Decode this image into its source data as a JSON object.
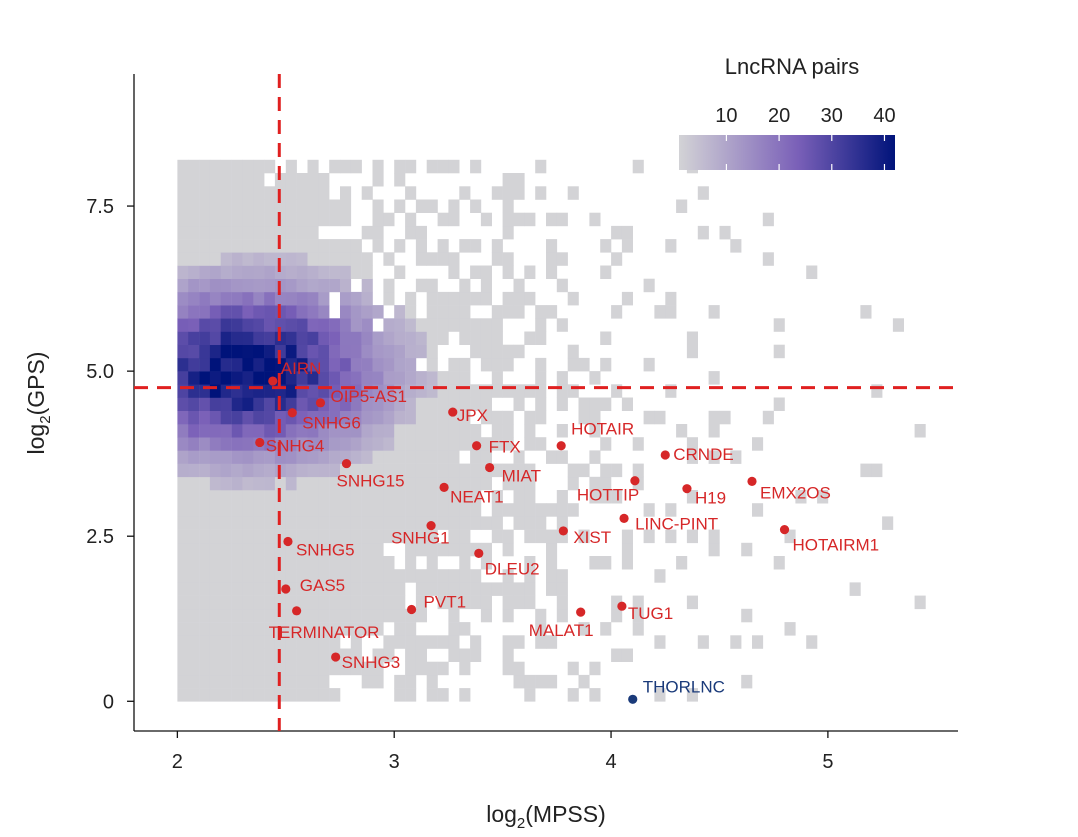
{
  "chart_data": {
    "type": "heatmap",
    "xlabel_prefix": "log",
    "xlabel_sub": "2",
    "xlabel_arg": "(MPSS)",
    "ylabel_prefix": "log",
    "ylabel_sub": "2",
    "ylabel_arg": "(GPS)",
    "xlim": [
      1.8,
      5.6
    ],
    "ylim": [
      -0.45,
      9.5
    ],
    "x_ticks": [
      2,
      3,
      4,
      5
    ],
    "x_tick_labels": [
      "2",
      "3",
      "4",
      "5"
    ],
    "y_ticks": [
      0,
      2.5,
      5.0,
      7.5
    ],
    "y_tick_labels": [
      "0",
      "2.5",
      "5.0",
      "7.5"
    ],
    "thresholds": {
      "x": 2.47,
      "y": 4.75,
      "color": "#e02020"
    },
    "legend": {
      "title": "LncRNA pairs",
      "ticks": [
        10,
        20,
        30,
        40
      ],
      "tick_labels": [
        "10",
        "20",
        "30",
        "40"
      ],
      "range": [
        1,
        42
      ],
      "color_low": "#d3d3d6",
      "color_high": "#00137a"
    },
    "density": {
      "center_x": 2.3,
      "center_y": 4.9,
      "peak_count": 42
    },
    "highlight_color": "#d62728",
    "special_color": "#1a3a7a",
    "points": [
      {
        "label": "AIRN",
        "x": 2.44,
        "y": 4.85
      },
      {
        "label": "OIP5-AS1",
        "x": 2.66,
        "y": 4.52
      },
      {
        "label": "SNHG6",
        "x": 2.53,
        "y": 4.37
      },
      {
        "label": "SNHG4",
        "x": 2.38,
        "y": 3.92
      },
      {
        "label": "SNHG15",
        "x": 2.78,
        "y": 3.6
      },
      {
        "label": "JPX",
        "x": 3.27,
        "y": 4.38
      },
      {
        "label": "FTX",
        "x": 3.38,
        "y": 3.87
      },
      {
        "label": "MIAT",
        "x": 3.44,
        "y": 3.54
      },
      {
        "label": "NEAT1",
        "x": 3.23,
        "y": 3.24
      },
      {
        "label": "HOTAIR",
        "x": 3.77,
        "y": 3.87
      },
      {
        "label": "CRNDE",
        "x": 4.25,
        "y": 3.73
      },
      {
        "label": "HOTTIP",
        "x": 4.11,
        "y": 3.34
      },
      {
        "label": "H19",
        "x": 4.35,
        "y": 3.22
      },
      {
        "label": "EMX2OS",
        "x": 4.65,
        "y": 3.33
      },
      {
        "label": "XIST",
        "x": 3.78,
        "y": 2.58
      },
      {
        "label": "LINC-PINT",
        "x": 4.06,
        "y": 2.77
      },
      {
        "label": "HOTAIRM1",
        "x": 4.8,
        "y": 2.6
      },
      {
        "label": "SNHG1",
        "x": 3.17,
        "y": 2.66
      },
      {
        "label": "DLEU2",
        "x": 3.39,
        "y": 2.24
      },
      {
        "label": "SNHG5",
        "x": 2.51,
        "y": 2.42
      },
      {
        "label": "GAS5",
        "x": 2.5,
        "y": 1.7
      },
      {
        "label": "PVT1",
        "x": 3.08,
        "y": 1.39
      },
      {
        "label": "TERMINATOR",
        "x": 2.55,
        "y": 1.37
      },
      {
        "label": "MALAT1",
        "x": 3.86,
        "y": 1.35
      },
      {
        "label": "TUG1",
        "x": 4.05,
        "y": 1.44
      },
      {
        "label": "SNHG3",
        "x": 2.73,
        "y": 0.67
      },
      {
        "label": "THORLNC",
        "x": 4.1,
        "y": 0.03,
        "special": true
      }
    ]
  }
}
